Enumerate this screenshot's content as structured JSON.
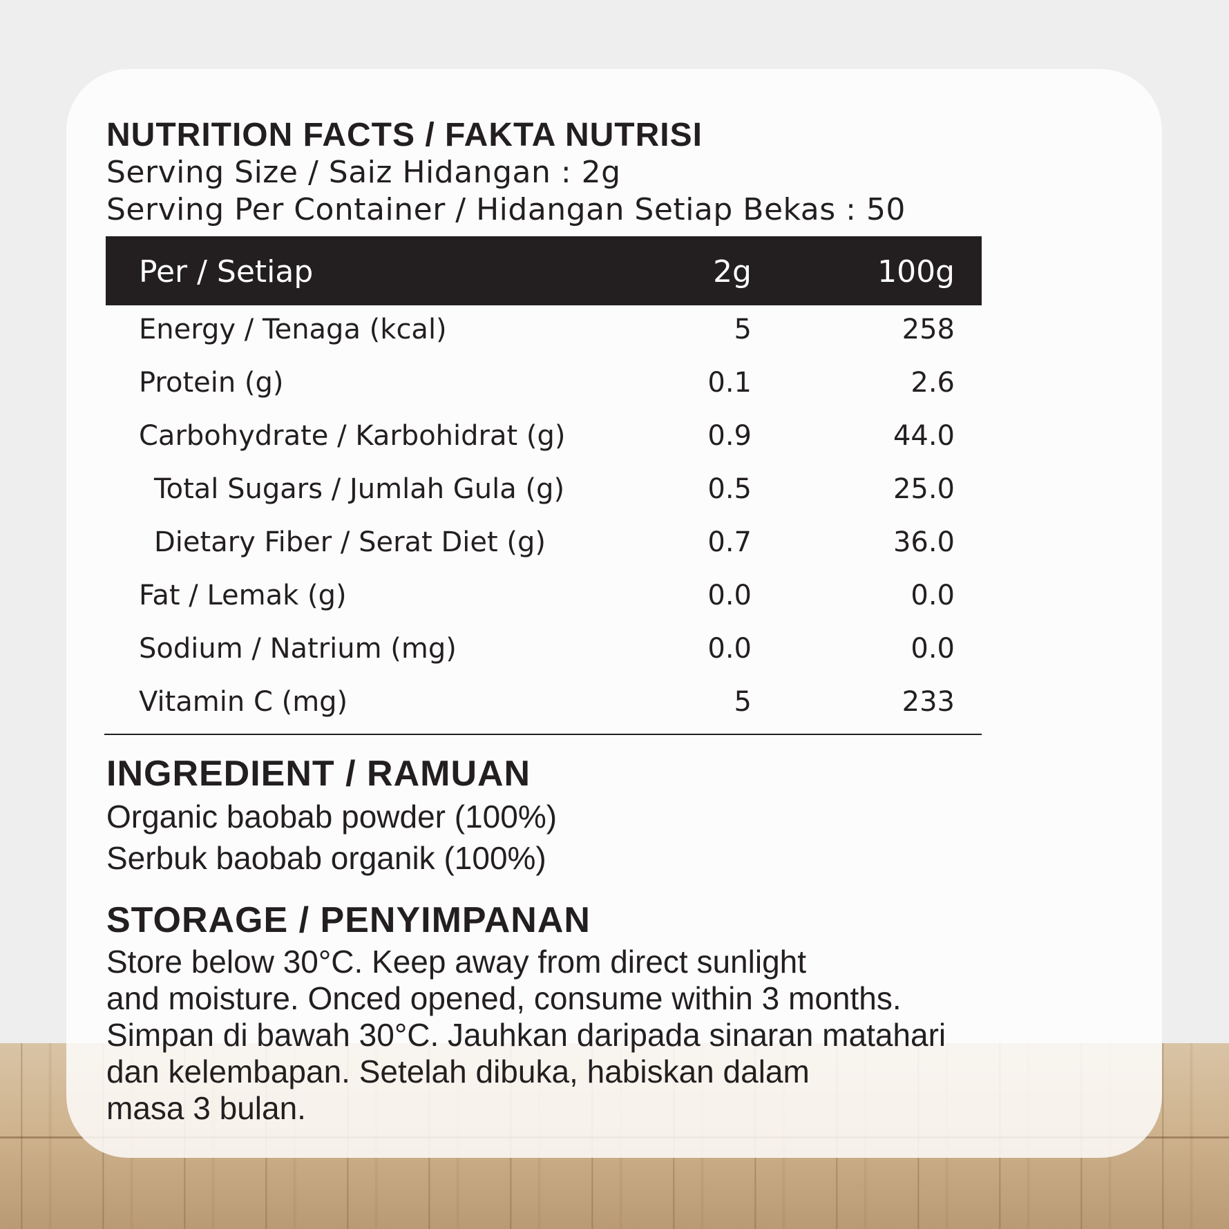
{
  "title": "NUTRITION FACTS / FAKTA NUTRISI",
  "serving_size": "Serving Size / Saiz Hidangan : 2g",
  "serving_per_container": "Serving Per Container / Hidangan Setiap Bekas : 50",
  "table": {
    "header": {
      "label": "Per / Setiap",
      "col1": "2g",
      "col2": "100g"
    },
    "rows": [
      {
        "name": "Energy / Tenaga (kcal)",
        "v2g": "5",
        "v100g": "258"
      },
      {
        "name": "Protein (g)",
        "v2g": "0.1",
        "v100g": "2.6"
      },
      {
        "name": "Carbohydrate / Karbohidrat (g)",
        "v2g": "0.9",
        "v100g": "44.0"
      },
      {
        "name": "Total Sugars / Jumlah Gula (g)",
        "v2g": "0.5",
        "v100g": "25.0"
      },
      {
        "name": "Dietary Fiber / Serat Diet (g)",
        "v2g": "0.7",
        "v100g": "36.0"
      },
      {
        "name": "Fat / Lemak (g)",
        "v2g": "0.0",
        "v100g": "0.0"
      },
      {
        "name": "Sodium / Natrium (mg)",
        "v2g": "0.0",
        "v100g": "0.0"
      },
      {
        "name": "Vitamin C (mg)",
        "v2g": "5",
        "v100g": "233"
      }
    ]
  },
  "ingredient": {
    "heading": "INGREDIENT / RAMUAN",
    "line1": "Organic baobab powder (100%)",
    "line2": "Serbuk baobab organik (100%)"
  },
  "storage": {
    "heading": "STORAGE / PENYIMPANAN",
    "lines": [
      "Store below 30°C. Keep away from direct sunlight",
      "and moisture. Onced opened, consume within 3 months.",
      "Simpan di bawah 30°C. Jauhkan daripada sinaran matahari",
      "dan kelembapan. Setelah dibuka, habiskan dalam",
      "masa 3 bulan."
    ]
  }
}
